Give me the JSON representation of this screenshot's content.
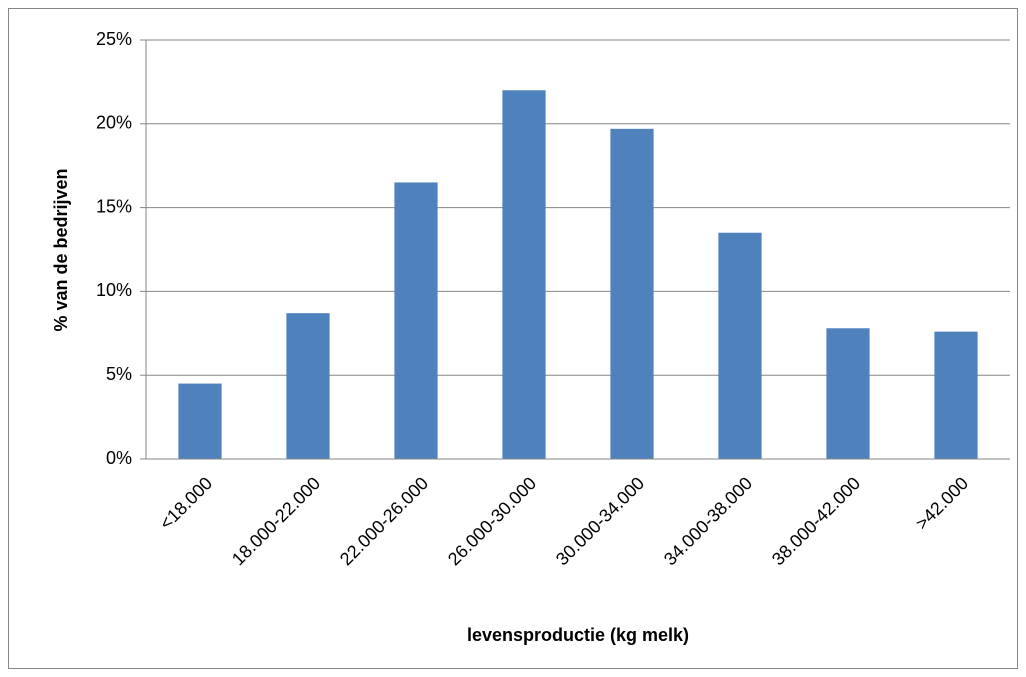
{
  "chart_data": {
    "type": "bar",
    "x_label": "levensproductie (kg melk)",
    "y_label": "% van de bedrijven",
    "categories": [
      "<18.000",
      "18.000-22.000",
      "22.000-26.000",
      "26.000-30.000",
      "30.000-34.000",
      "34.000-38.000",
      "38.000-42.000",
      ">42.000"
    ],
    "values": [
      4.5,
      8.7,
      16.5,
      22.0,
      19.7,
      13.5,
      7.8,
      7.6
    ],
    "color": "#4f81bd",
    "ylim": [
      0,
      25
    ],
    "yticks": [
      {
        "value": 0,
        "label": "0%"
      },
      {
        "value": 5,
        "label": "5%"
      },
      {
        "value": 10,
        "label": "10%"
      },
      {
        "value": 15,
        "label": "15%"
      },
      {
        "value": 20,
        "label": "20%"
      },
      {
        "value": 25,
        "label": "25%"
      }
    ],
    "grid": true
  }
}
